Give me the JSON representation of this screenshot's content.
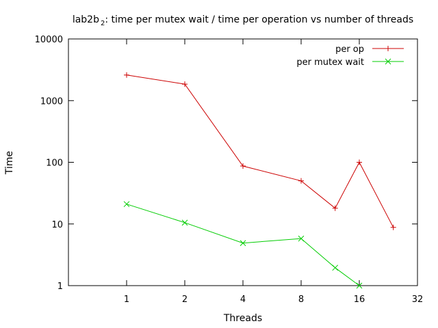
{
  "chart_data": {
    "type": "line",
    "title_main": "lab2b",
    "title_sub": "2",
    "title_rest": ": time per mutex wait / time per operation vs number of threads",
    "xlabel": "Threads",
    "ylabel": "Time",
    "x_scale": "log2",
    "y_scale": "log10",
    "xlim": [
      0.5,
      32
    ],
    "ylim": [
      1,
      10000
    ],
    "x_ticks": [
      1,
      2,
      4,
      8,
      16,
      32
    ],
    "x_tick_labels": [
      "1",
      "2",
      "4",
      "8",
      "16",
      "32"
    ],
    "y_ticks": [
      1,
      10,
      100,
      1000,
      10000
    ],
    "y_tick_labels": [
      "1",
      "10",
      "100",
      "1000",
      "10000"
    ],
    "grid": false,
    "legend_position": "top-right",
    "series": [
      {
        "name": "per op",
        "color": "#cc0000",
        "marker": "plus",
        "points": [
          [
            1,
            2600
          ],
          [
            2,
            1850
          ],
          [
            4,
            87
          ],
          [
            8,
            50
          ],
          [
            12,
            18
          ],
          [
            16,
            100
          ],
          [
            24,
            8.8
          ]
        ]
      },
      {
        "name": "per mutex wait",
        "color": "#00cc00",
        "marker": "cross",
        "points": [
          [
            1,
            21
          ],
          [
            2,
            10.5
          ],
          [
            4,
            4.9
          ],
          [
            8,
            5.8
          ],
          [
            12,
            1.95
          ],
          [
            16,
            1.0
          ]
        ]
      }
    ]
  }
}
